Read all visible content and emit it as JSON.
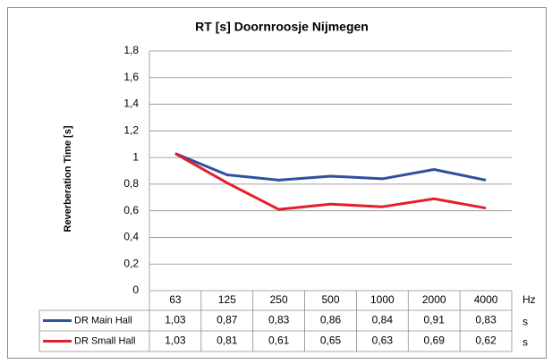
{
  "chart_data": {
    "type": "line",
    "title": "RT [s] Doornroosje Nijmegen",
    "y_label": "Reverberation Time [s]",
    "x_unit": "Hz",
    "table_unit": "s",
    "categories": [
      "63",
      "125",
      "250",
      "500",
      "1000",
      "2000",
      "4000"
    ],
    "series": [
      {
        "name": "DR Main Hall",
        "color": "#2f4f9f",
        "values": [
          1.03,
          0.87,
          0.83,
          0.86,
          0.84,
          0.91,
          0.83
        ],
        "value_labels": [
          "1,03",
          "0,87",
          "0,83",
          "0,86",
          "0,84",
          "0,91",
          "0,83"
        ]
      },
      {
        "name": "DR Small  Hall",
        "color": "#e3202a",
        "values": [
          1.03,
          0.81,
          0.61,
          0.65,
          0.63,
          0.69,
          0.62
        ],
        "value_labels": [
          "1,03",
          "0,81",
          "0,61",
          "0,65",
          "0,63",
          "0,69",
          "0,62"
        ]
      }
    ],
    "ylim": [
      0,
      1.8
    ],
    "yticks": [
      0,
      {
        "value": 0.2,
        "label": "0,2"
      },
      {
        "value": 0.4,
        "label": "0,4"
      },
      {
        "value": 0.6,
        "label": "0,6"
      },
      {
        "value": 0.8,
        "label": "0,8"
      },
      1,
      {
        "value": 1.2,
        "label": "1,2"
      },
      {
        "value": 1.4,
        "label": "1,4"
      },
      {
        "value": 1.6,
        "label": "1,6"
      },
      {
        "value": 1.8,
        "label": "1,8"
      }
    ],
    "grid": true
  }
}
